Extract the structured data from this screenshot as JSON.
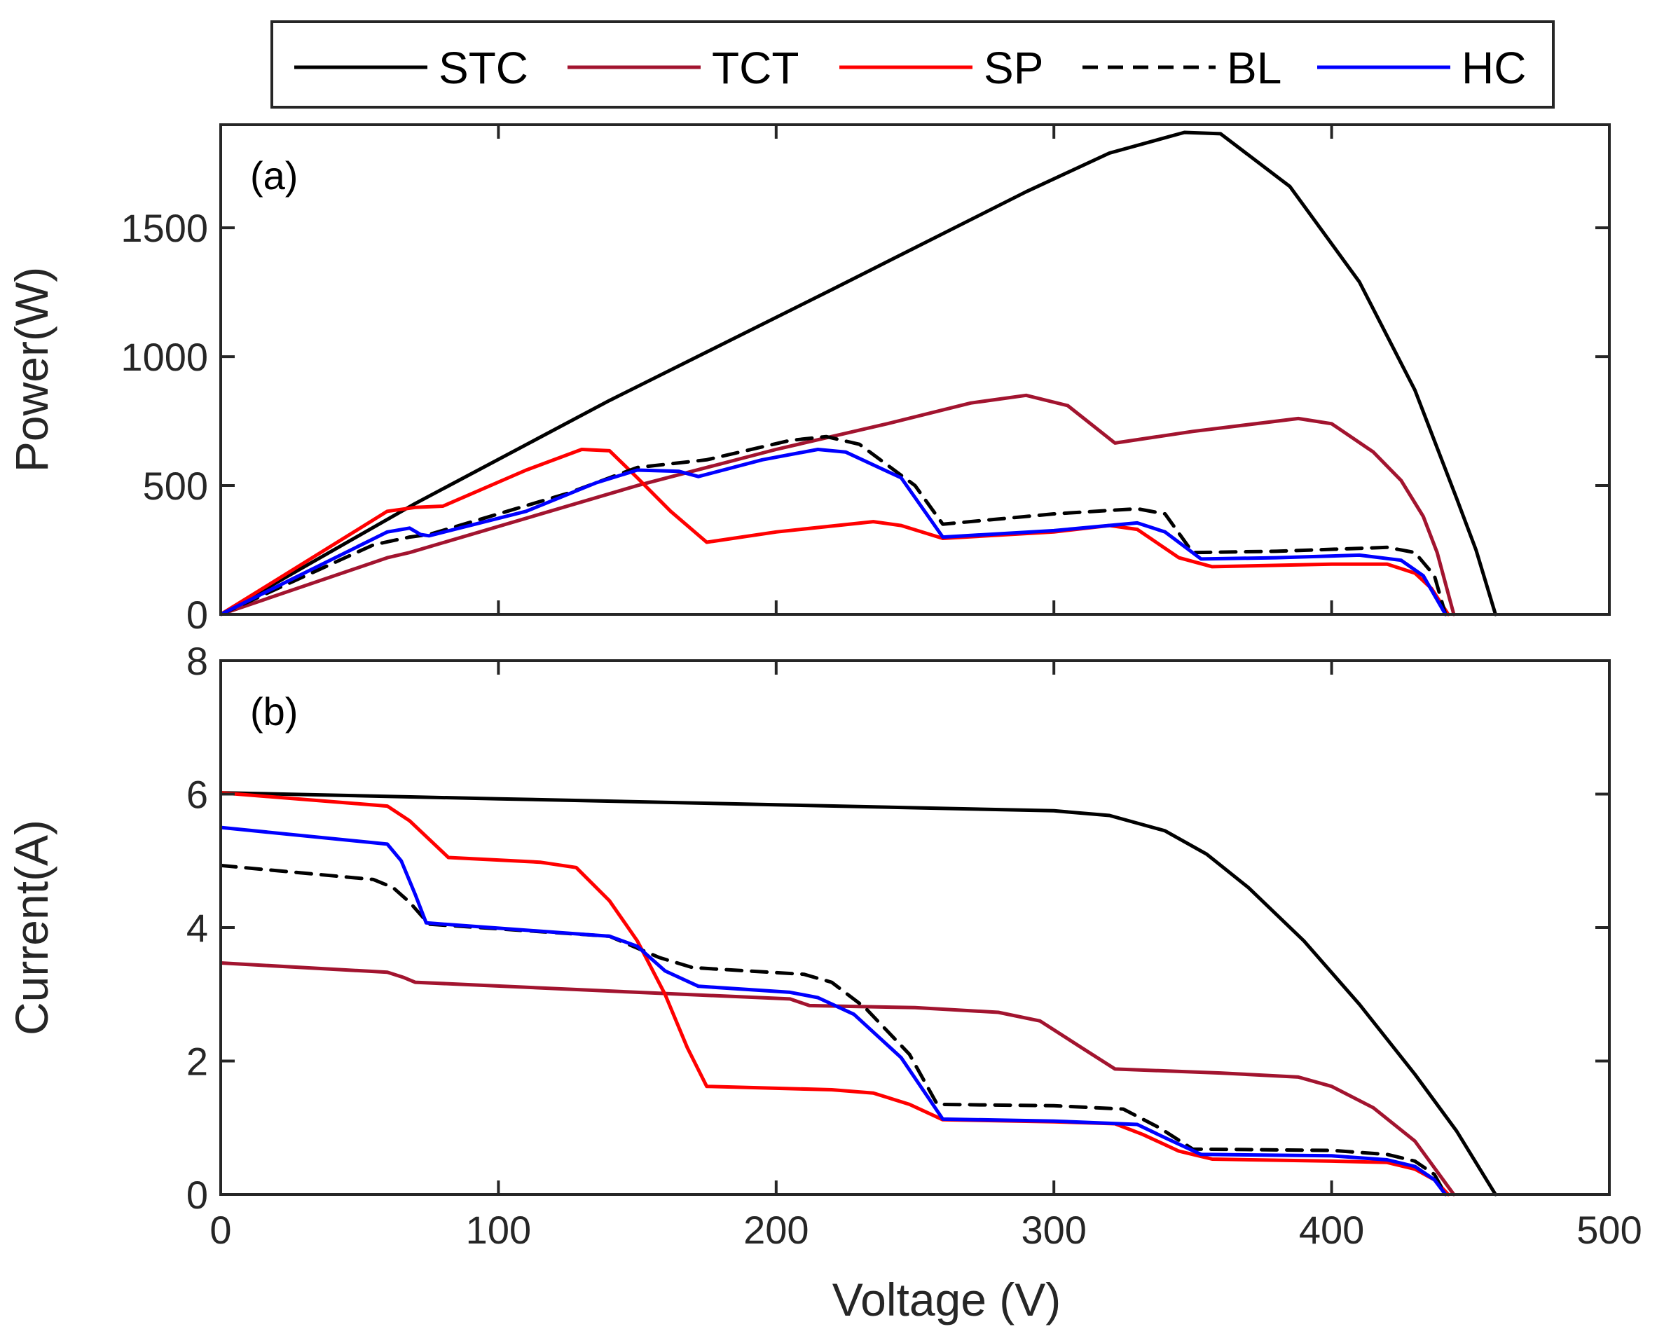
{
  "chart_data": [
    {
      "type": "line",
      "panel_label": "(a)",
      "xlabel": "",
      "ylabel": "Power(W)",
      "xlim": [
        0,
        500
      ],
      "ylim": [
        0,
        1900
      ],
      "xticks": [
        0,
        100,
        200,
        300,
        400,
        500
      ],
      "yticks": [
        0,
        500,
        1000,
        1500
      ],
      "xtick_labels_visible": false,
      "series": [
        {
          "name": "STC",
          "color": "#000000",
          "dash": false,
          "points": [
            [
              0,
              0
            ],
            [
              70,
              430
            ],
            [
              140,
              830
            ],
            [
              220,
              1260
            ],
            [
              290,
              1640
            ],
            [
              320,
              1790
            ],
            [
              347,
              1870
            ],
            [
              360,
              1865
            ],
            [
              385,
              1660
            ],
            [
              410,
              1290
            ],
            [
              430,
              870
            ],
            [
              445,
              450
            ],
            [
              452,
              250
            ],
            [
              459,
              0
            ]
          ]
        },
        {
          "name": "TCT",
          "color": "#a2142f",
          "dash": false,
          "points": [
            [
              0,
              0
            ],
            [
              60,
              220
            ],
            [
              68,
              240
            ],
            [
              150,
              500
            ],
            [
              200,
              640
            ],
            [
              240,
              740
            ],
            [
              270,
              820
            ],
            [
              290,
              850
            ],
            [
              305,
              810
            ],
            [
              322,
              665
            ],
            [
              350,
              710
            ],
            [
              388,
              760
            ],
            [
              400,
              740
            ],
            [
              415,
              630
            ],
            [
              425,
              520
            ],
            [
              433,
              380
            ],
            [
              438,
              240
            ],
            [
              444,
              0
            ]
          ]
        },
        {
          "name": "SP",
          "color": "#ff0000",
          "dash": false,
          "points": [
            [
              0,
              0
            ],
            [
              60,
              400
            ],
            [
              70,
              415
            ],
            [
              80,
              420
            ],
            [
              110,
              560
            ],
            [
              130,
              640
            ],
            [
              140,
              635
            ],
            [
              150,
              530
            ],
            [
              162,
              400
            ],
            [
              175,
              280
            ],
            [
              200,
              320
            ],
            [
              235,
              360
            ],
            [
              245,
              345
            ],
            [
              260,
              295
            ],
            [
              300,
              320
            ],
            [
              320,
              345
            ],
            [
              330,
              330
            ],
            [
              345,
              220
            ],
            [
              357,
              185
            ],
            [
              400,
              195
            ],
            [
              420,
              195
            ],
            [
              430,
              160
            ],
            [
              436,
              100
            ],
            [
              442,
              0
            ]
          ]
        },
        {
          "name": "BL",
          "color": "#000000",
          "dash": true,
          "points": [
            [
              0,
              0
            ],
            [
              55,
              270
            ],
            [
              68,
              300
            ],
            [
              75,
              310
            ],
            [
              125,
              470
            ],
            [
              150,
              570
            ],
            [
              175,
              600
            ],
            [
              205,
              675
            ],
            [
              218,
              690
            ],
            [
              230,
              660
            ],
            [
              250,
              500
            ],
            [
              260,
              350
            ],
            [
              280,
              370
            ],
            [
              300,
              390
            ],
            [
              330,
              410
            ],
            [
              340,
              390
            ],
            [
              350,
              240
            ],
            [
              380,
              245
            ],
            [
              420,
              260
            ],
            [
              430,
              240
            ],
            [
              437,
              150
            ],
            [
              441,
              0
            ]
          ]
        },
        {
          "name": "HC",
          "color": "#0000ff",
          "dash": false,
          "points": [
            [
              0,
              0
            ],
            [
              60,
              320
            ],
            [
              68,
              335
            ],
            [
              72,
              310
            ],
            [
              75,
              305
            ],
            [
              110,
              400
            ],
            [
              135,
              510
            ],
            [
              150,
              560
            ],
            [
              165,
              555
            ],
            [
              172,
              535
            ],
            [
              195,
              600
            ],
            [
              215,
              640
            ],
            [
              225,
              630
            ],
            [
              245,
              530
            ],
            [
              260,
              300
            ],
            [
              300,
              325
            ],
            [
              330,
              355
            ],
            [
              340,
              320
            ],
            [
              353,
              215
            ],
            [
              380,
              220
            ],
            [
              410,
              230
            ],
            [
              425,
              210
            ],
            [
              433,
              150
            ],
            [
              441,
              0
            ]
          ]
        }
      ]
    },
    {
      "type": "line",
      "panel_label": "(b)",
      "xlabel": "Voltage (V)",
      "ylabel": "Current(A)",
      "xlim": [
        0,
        500
      ],
      "ylim": [
        0,
        8
      ],
      "xticks": [
        0,
        100,
        200,
        300,
        400,
        500
      ],
      "yticks": [
        0,
        2,
        4,
        6,
        8
      ],
      "xtick_labels_visible": true,
      "series": [
        {
          "name": "STC",
          "color": "#000000",
          "dash": false,
          "points": [
            [
              0,
              6.02
            ],
            [
              100,
              5.93
            ],
            [
              200,
              5.84
            ],
            [
              300,
              5.75
            ],
            [
              320,
              5.68
            ],
            [
              340,
              5.45
            ],
            [
              355,
              5.1
            ],
            [
              370,
              4.6
            ],
            [
              390,
              3.8
            ],
            [
              410,
              2.85
            ],
            [
              430,
              1.8
            ],
            [
              445,
              0.95
            ],
            [
              459,
              0
            ]
          ]
        },
        {
          "name": "TCT",
          "color": "#a2142f",
          "dash": false,
          "points": [
            [
              0,
              3.47
            ],
            [
              60,
              3.33
            ],
            [
              66,
              3.25
            ],
            [
              70,
              3.18
            ],
            [
              150,
              3.03
            ],
            [
              205,
              2.93
            ],
            [
              212,
              2.83
            ],
            [
              250,
              2.8
            ],
            [
              280,
              2.73
            ],
            [
              295,
              2.6
            ],
            [
              310,
              2.2
            ],
            [
              322,
              1.88
            ],
            [
              360,
              1.82
            ],
            [
              388,
              1.76
            ],
            [
              400,
              1.62
            ],
            [
              415,
              1.3
            ],
            [
              430,
              0.8
            ],
            [
              444,
              0
            ]
          ]
        },
        {
          "name": "SP",
          "color": "#ff0000",
          "dash": false,
          "points": [
            [
              0,
              6.02
            ],
            [
              60,
              5.82
            ],
            [
              68,
              5.6
            ],
            [
              82,
              5.05
            ],
            [
              115,
              4.98
            ],
            [
              128,
              4.9
            ],
            [
              140,
              4.4
            ],
            [
              150,
              3.8
            ],
            [
              160,
              3.0
            ],
            [
              168,
              2.2
            ],
            [
              175,
              1.62
            ],
            [
              220,
              1.57
            ],
            [
              235,
              1.52
            ],
            [
              248,
              1.35
            ],
            [
              260,
              1.12
            ],
            [
              300,
              1.09
            ],
            [
              322,
              1.06
            ],
            [
              332,
              0.9
            ],
            [
              345,
              0.65
            ],
            [
              357,
              0.53
            ],
            [
              400,
              0.5
            ],
            [
              420,
              0.48
            ],
            [
              430,
              0.38
            ],
            [
              437,
              0.22
            ],
            [
              442,
              0
            ]
          ]
        },
        {
          "name": "BL",
          "color": "#000000",
          "dash": true,
          "points": [
            [
              0,
              4.93
            ],
            [
              55,
              4.72
            ],
            [
              62,
              4.6
            ],
            [
              68,
              4.38
            ],
            [
              75,
              4.05
            ],
            [
              140,
              3.87
            ],
            [
              158,
              3.55
            ],
            [
              170,
              3.4
            ],
            [
              210,
              3.3
            ],
            [
              220,
              3.18
            ],
            [
              232,
              2.8
            ],
            [
              248,
              2.1
            ],
            [
              258,
              1.35
            ],
            [
              300,
              1.33
            ],
            [
              325,
              1.28
            ],
            [
              338,
              1.0
            ],
            [
              350,
              0.68
            ],
            [
              400,
              0.66
            ],
            [
              420,
              0.6
            ],
            [
              430,
              0.5
            ],
            [
              437,
              0.3
            ],
            [
              441,
              0
            ]
          ]
        },
        {
          "name": "HC",
          "color": "#0000ff",
          "dash": false,
          "points": [
            [
              0,
              5.5
            ],
            [
              60,
              5.25
            ],
            [
              65,
              5.0
            ],
            [
              70,
              4.5
            ],
            [
              74,
              4.07
            ],
            [
              140,
              3.87
            ],
            [
              150,
              3.72
            ],
            [
              160,
              3.35
            ],
            [
              172,
              3.12
            ],
            [
              205,
              3.03
            ],
            [
              215,
              2.95
            ],
            [
              228,
              2.7
            ],
            [
              245,
              2.05
            ],
            [
              260,
              1.13
            ],
            [
              300,
              1.1
            ],
            [
              330,
              1.05
            ],
            [
              340,
              0.85
            ],
            [
              353,
              0.6
            ],
            [
              400,
              0.58
            ],
            [
              420,
              0.52
            ],
            [
              430,
              0.42
            ],
            [
              437,
              0.22
            ],
            [
              441,
              0
            ]
          ]
        }
      ]
    }
  ],
  "legend": {
    "position": "top-center",
    "entries": [
      "STC",
      "TCT",
      "SP",
      "BL",
      "HC"
    ]
  }
}
